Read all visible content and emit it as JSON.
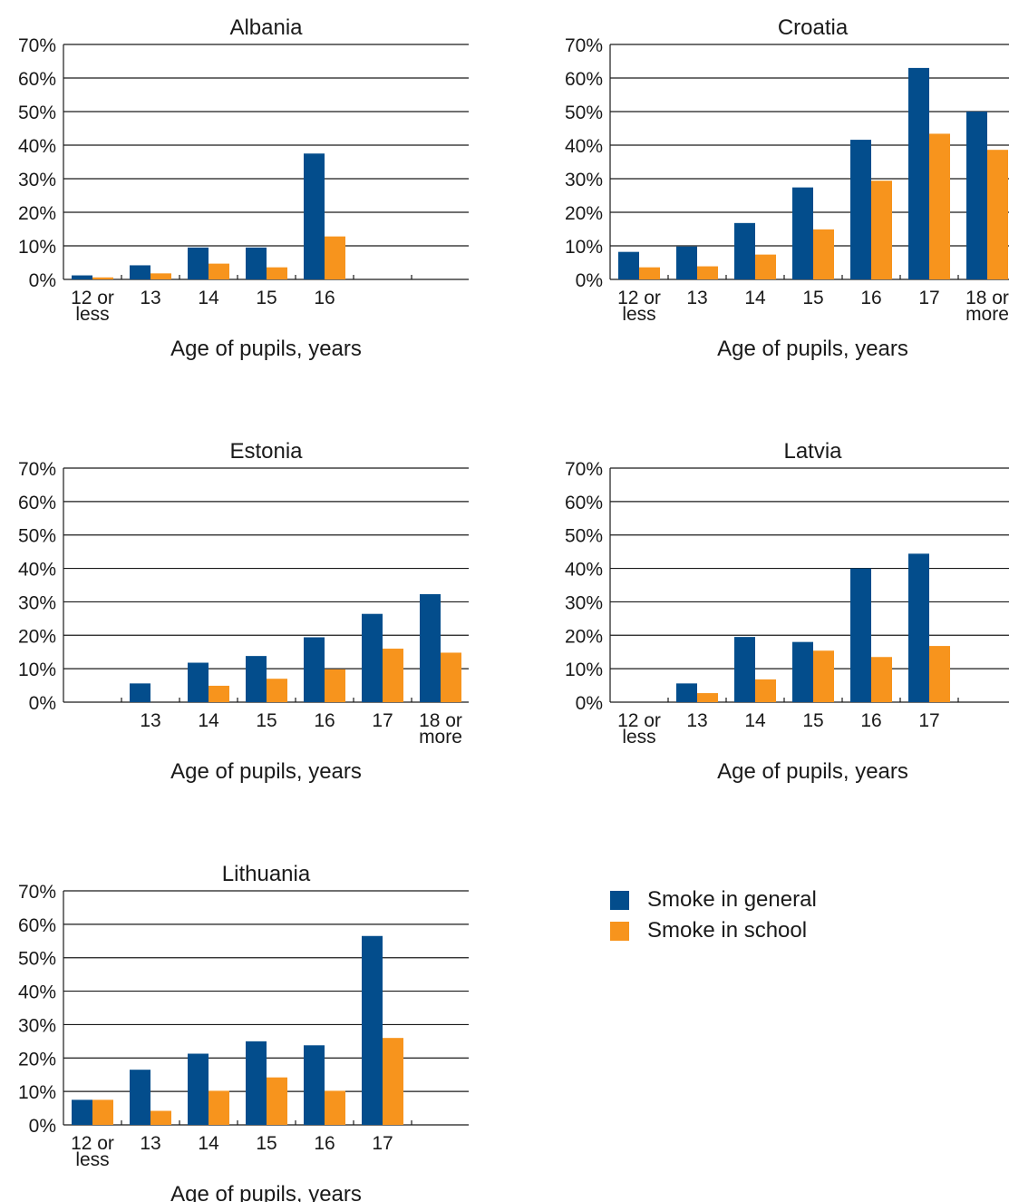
{
  "colors": {
    "general": "#034d8c",
    "school": "#f7941d",
    "axis": "#1a1a1a"
  },
  "legend": {
    "general_label": "Smoke in general",
    "school_label": "Smoke in school"
  },
  "chart_data": [
    {
      "type": "bar",
      "title": "Albania",
      "xlabel": "Age of pupils, years",
      "ylabel": "",
      "ylim": [
        0,
        70
      ],
      "yticks": [
        "0%",
        "10%",
        "20%",
        "30%",
        "40%",
        "50%",
        "60%",
        "70%"
      ],
      "categories": [
        "12 or less",
        "13",
        "14",
        "15",
        "16",
        "",
        ""
      ],
      "series": [
        {
          "name": "Smoke in general",
          "values": [
            1.2,
            4.2,
            9.5,
            9.5,
            37.5,
            null,
            null
          ]
        },
        {
          "name": "Smoke in school",
          "values": [
            0.6,
            1.8,
            4.7,
            3.6,
            12.8,
            null,
            null
          ]
        }
      ],
      "grid": true
    },
    {
      "type": "bar",
      "title": "Croatia",
      "xlabel": "Age of pupils, years",
      "ylabel": "",
      "ylim": [
        0,
        70
      ],
      "yticks": [
        "0%",
        "10%",
        "20%",
        "30%",
        "40%",
        "50%",
        "60%",
        "70%"
      ],
      "categories": [
        "12 or less",
        "13",
        "14",
        "15",
        "16",
        "17",
        "18 or more"
      ],
      "series": [
        {
          "name": "Smoke in general",
          "values": [
            8.2,
            9.8,
            16.8,
            27.4,
            41.6,
            63.0,
            50.0
          ]
        },
        {
          "name": "Smoke in school",
          "values": [
            3.6,
            3.9,
            7.4,
            14.9,
            29.4,
            43.4,
            38.6
          ]
        }
      ],
      "grid": true
    },
    {
      "type": "bar",
      "title": "Estonia",
      "xlabel": "Age of pupils, years",
      "ylabel": "",
      "ylim": [
        0,
        70
      ],
      "yticks": [
        "0%",
        "10%",
        "20%",
        "30%",
        "40%",
        "50%",
        "60%",
        "70%"
      ],
      "categories": [
        "",
        "13",
        "14",
        "15",
        "16",
        "17",
        "18 or more"
      ],
      "series": [
        {
          "name": "Smoke in general",
          "values": [
            null,
            5.6,
            11.8,
            13.8,
            19.4,
            26.4,
            32.3
          ]
        },
        {
          "name": "Smoke in school",
          "values": [
            null,
            0,
            4.9,
            7.0,
            9.8,
            16.0,
            14.8
          ]
        }
      ],
      "grid": true
    },
    {
      "type": "bar",
      "title": "Latvia",
      "xlabel": "Age of pupils, years",
      "ylabel": "",
      "ylim": [
        0,
        70
      ],
      "yticks": [
        "0%",
        "10%",
        "20%",
        "30%",
        "40%",
        "50%",
        "60%",
        "70%"
      ],
      "categories": [
        "12 or less",
        "13",
        "14",
        "15",
        "16",
        "17",
        ""
      ],
      "series": [
        {
          "name": "Smoke in general",
          "values": [
            0,
            5.6,
            19.5,
            18.0,
            40.0,
            44.4,
            null
          ]
        },
        {
          "name": "Smoke in school",
          "values": [
            0,
            2.7,
            6.8,
            15.4,
            13.5,
            16.8,
            null
          ]
        }
      ],
      "grid": true
    },
    {
      "type": "bar",
      "title": "Lithuania",
      "xlabel": "Age of pupils, years",
      "ylabel": "",
      "ylim": [
        0,
        70
      ],
      "yticks": [
        "0%",
        "10%",
        "20%",
        "30%",
        "40%",
        "50%",
        "60%",
        "70%"
      ],
      "categories": [
        "12 or less",
        "13",
        "14",
        "15",
        "16",
        "17",
        ""
      ],
      "series": [
        {
          "name": "Smoke in general",
          "values": [
            7.5,
            16.5,
            21.3,
            25.0,
            23.8,
            56.5,
            null
          ]
        },
        {
          "name": "Smoke in school",
          "values": [
            7.5,
            4.2,
            10.2,
            14.2,
            10.2,
            26.0,
            null
          ]
        }
      ],
      "grid": true
    }
  ]
}
